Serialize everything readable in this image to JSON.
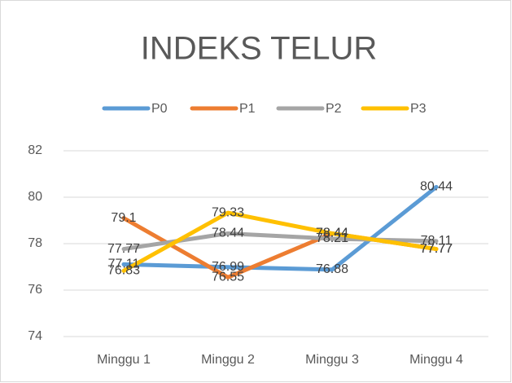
{
  "chart_data": {
    "type": "line",
    "title": "INDEKS TELUR",
    "categories": [
      "Minggu 1",
      "Minggu 2",
      "Minggu 3",
      "Minggu 4"
    ],
    "series": [
      {
        "name": "P0",
        "color": "#5b9bd5",
        "values": [
          77.11,
          76.99,
          76.88,
          80.44
        ]
      },
      {
        "name": "P1",
        "color": "#ed7d31",
        "values": [
          79.1,
          76.55,
          78.44,
          77.77
        ]
      },
      {
        "name": "P2",
        "color": "#a5a5a5",
        "values": [
          77.77,
          78.44,
          78.21,
          78.11
        ]
      },
      {
        "name": "P3",
        "color": "#ffc000",
        "values": [
          76.83,
          79.33,
          78.44,
          77.77
        ]
      }
    ],
    "ylim": [
      74,
      82
    ],
    "yticks": [
      74,
      76,
      78,
      80,
      82
    ],
    "grid": true,
    "legend": "top"
  }
}
